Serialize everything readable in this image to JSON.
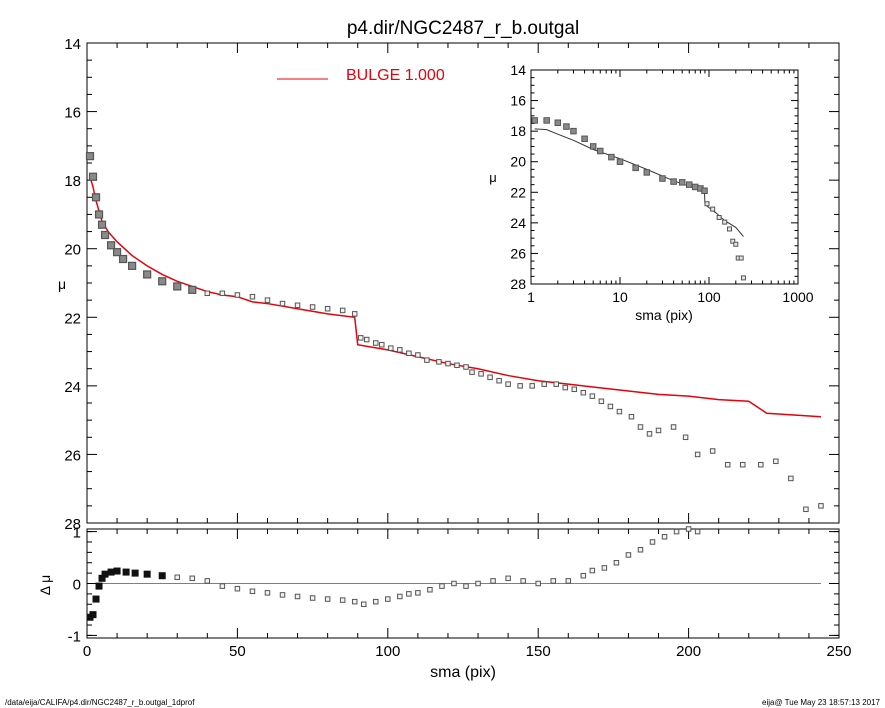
{
  "title": "p4.dir/NGC2487_r_b.outgal",
  "footer": {
    "path": "/data/eija/CALIFA/p4.dir/NGC2487_r_b.outgal_1dprof",
    "stamp": "eija@  Tue May 23 18:57:13 2017"
  },
  "legend": {
    "label": "BULGE  1.000",
    "placement": "top-center"
  },
  "colors": {
    "model": "#e8000b",
    "data": "#555555",
    "axis": "#000000",
    "inset_model": "#333333"
  },
  "chart_data": [
    {
      "type": "scatter",
      "panel": "main",
      "xlabel": "sma (pix)",
      "ylabel": "μ",
      "xlim": [
        0,
        250
      ],
      "ylim": [
        28,
        14
      ],
      "y_inverted": true,
      "xticks": [
        "0",
        "50",
        "100",
        "150",
        "200",
        "250"
      ],
      "yticks": [
        "14",
        "16",
        "18",
        "20",
        "22",
        "24",
        "26",
        "28"
      ],
      "series": [
        {
          "name": "BULGE  1.000",
          "kind": "line",
          "points": [
            [
              1,
              17.9
            ],
            [
              2,
              18.2
            ],
            [
              3,
              18.6
            ],
            [
              4,
              18.9
            ],
            [
              5,
              19.2
            ],
            [
              7,
              19.5
            ],
            [
              10,
              19.8
            ],
            [
              15,
              20.2
            ],
            [
              20,
              20.5
            ],
            [
              25,
              20.75
            ],
            [
              30,
              20.95
            ],
            [
              35,
              21.1
            ],
            [
              40,
              21.25
            ],
            [
              45,
              21.35
            ],
            [
              50,
              21.4
            ],
            [
              55,
              21.55
            ],
            [
              60,
              21.6
            ],
            [
              70,
              21.75
            ],
            [
              80,
              21.9
            ],
            [
              89,
              22.0
            ],
            [
              90,
              22.8
            ],
            [
              100,
              22.95
            ],
            [
              110,
              23.15
            ],
            [
              120,
              23.35
            ],
            [
              130,
              23.5
            ],
            [
              140,
              23.7
            ],
            [
              150,
              23.85
            ],
            [
              160,
              23.95
            ],
            [
              170,
              24.05
            ],
            [
              180,
              24.15
            ],
            [
              190,
              24.25
            ],
            [
              200,
              24.3
            ],
            [
              210,
              24.4
            ],
            [
              220,
              24.45
            ],
            [
              226,
              24.8
            ],
            [
              235,
              24.85
            ],
            [
              244,
              24.9
            ]
          ]
        },
        {
          "kind": "markers",
          "points": [
            [
              1,
              17.3
            ],
            [
              2,
              17.9
            ],
            [
              3,
              18.5
            ],
            [
              4,
              19.0
            ],
            [
              5,
              19.3
            ],
            [
              6,
              19.6
            ],
            [
              8,
              19.9
            ],
            [
              10,
              20.1
            ],
            [
              12,
              20.3
            ],
            [
              15,
              20.5
            ],
            [
              20,
              20.75
            ],
            [
              25,
              20.95
            ],
            [
              30,
              21.1
            ],
            [
              35,
              21.2
            ],
            [
              40,
              21.3
            ],
            [
              45,
              21.3
            ],
            [
              50,
              21.35
            ],
            [
              55,
              21.4
            ],
            [
              60,
              21.5
            ],
            [
              65,
              21.6
            ],
            [
              70,
              21.65
            ],
            [
              75,
              21.7
            ],
            [
              80,
              21.75
            ],
            [
              85,
              21.8
            ],
            [
              89,
              21.9
            ],
            [
              91,
              22.6
            ],
            [
              93,
              22.65
            ],
            [
              96,
              22.75
            ],
            [
              98,
              22.8
            ],
            [
              101,
              22.9
            ],
            [
              104,
              22.95
            ],
            [
              107,
              23.05
            ],
            [
              110,
              23.1
            ],
            [
              113,
              23.25
            ],
            [
              117,
              23.3
            ],
            [
              120,
              23.35
            ],
            [
              123,
              23.4
            ],
            [
              126,
              23.45
            ],
            [
              128,
              23.6
            ],
            [
              131,
              23.65
            ],
            [
              134,
              23.75
            ],
            [
              137,
              23.85
            ],
            [
              140,
              23.95
            ],
            [
              144,
              24.0
            ],
            [
              148,
              24.0
            ],
            [
              152,
              23.95
            ],
            [
              156,
              23.95
            ],
            [
              159,
              24.05
            ],
            [
              162,
              24.1
            ],
            [
              165,
              24.2
            ],
            [
              168,
              24.3
            ],
            [
              171,
              24.45
            ],
            [
              174,
              24.6
            ],
            [
              177,
              24.75
            ],
            [
              181,
              24.9
            ],
            [
              184,
              25.2
            ],
            [
              187,
              25.4
            ],
            [
              190,
              25.3
            ],
            [
              195,
              25.2
            ],
            [
              199,
              25.5
            ],
            [
              203,
              26.0
            ],
            [
              208,
              25.9
            ],
            [
              213,
              26.3
            ],
            [
              218,
              26.3
            ],
            [
              224,
              26.3
            ],
            [
              229,
              26.2
            ],
            [
              234,
              26.7
            ],
            [
              239,
              27.6
            ],
            [
              244,
              27.5
            ]
          ]
        }
      ]
    },
    {
      "type": "scatter",
      "panel": "residual",
      "xlabel": "sma (pix)",
      "ylabel": "Δ μ",
      "xlim": [
        0,
        250
      ],
      "ylim": [
        -1.05,
        1.05
      ],
      "yticks": [
        "1",
        "0",
        "-1"
      ],
      "zero_line": true,
      "series": [
        {
          "kind": "markers",
          "points": [
            [
              1,
              -0.65
            ],
            [
              2,
              -0.6
            ],
            [
              3,
              -0.3
            ],
            [
              4,
              -0.05
            ],
            [
              5,
              0.1
            ],
            [
              6,
              0.18
            ],
            [
              8,
              0.22
            ],
            [
              10,
              0.24
            ],
            [
              13,
              0.22
            ],
            [
              16,
              0.2
            ],
            [
              20,
              0.18
            ],
            [
              25,
              0.15
            ],
            [
              30,
              0.12
            ],
            [
              35,
              0.1
            ],
            [
              40,
              0.05
            ],
            [
              45,
              -0.05
            ],
            [
              50,
              -0.1
            ],
            [
              55,
              -0.15
            ],
            [
              60,
              -0.18
            ],
            [
              65,
              -0.22
            ],
            [
              70,
              -0.25
            ],
            [
              75,
              -0.28
            ],
            [
              80,
              -0.3
            ],
            [
              85,
              -0.32
            ],
            [
              89,
              -0.35
            ],
            [
              92,
              -0.4
            ],
            [
              96,
              -0.35
            ],
            [
              100,
              -0.3
            ],
            [
              104,
              -0.25
            ],
            [
              107,
              -0.2
            ],
            [
              110,
              -0.18
            ],
            [
              114,
              -0.12
            ],
            [
              118,
              -0.05
            ],
            [
              122,
              0.0
            ],
            [
              126,
              -0.05
            ],
            [
              130,
              0.0
            ],
            [
              135,
              0.05
            ],
            [
              140,
              0.1
            ],
            [
              145,
              0.05
            ],
            [
              150,
              0.0
            ],
            [
              155,
              0.05
            ],
            [
              160,
              0.05
            ],
            [
              165,
              0.15
            ],
            [
              168,
              0.25
            ],
            [
              172,
              0.3
            ],
            [
              176,
              0.4
            ],
            [
              180,
              0.55
            ],
            [
              184,
              0.65
            ],
            [
              188,
              0.8
            ],
            [
              192,
              0.9
            ],
            [
              196,
              1.0
            ],
            [
              200,
              1.05
            ],
            [
              203,
              1.0
            ]
          ]
        }
      ]
    },
    {
      "type": "scatter",
      "panel": "inset",
      "xlabel": "sma (pix)",
      "ylabel": "μ",
      "x_log": true,
      "xlim": [
        1,
        1000
      ],
      "ylim": [
        28,
        14
      ],
      "y_inverted": true,
      "xticks": [
        "1",
        "10",
        "100",
        "1000"
      ],
      "yticks": [
        "14",
        "16",
        "18",
        "20",
        "22",
        "24",
        "26",
        "28"
      ],
      "series": [
        {
          "kind": "line",
          "points": [
            [
              1.1,
              17.85
            ],
            [
              1.5,
              17.9
            ],
            [
              2,
              18.2
            ],
            [
              3,
              18.6
            ],
            [
              5,
              19.2
            ],
            [
              10,
              19.8
            ],
            [
              20,
              20.5
            ],
            [
              40,
              21.25
            ],
            [
              60,
              21.6
            ],
            [
              89,
              22.0
            ],
            [
              90,
              22.8
            ],
            [
              120,
              23.35
            ],
            [
              150,
              23.85
            ],
            [
              200,
              24.3
            ],
            [
              244,
              24.9
            ]
          ]
        },
        {
          "kind": "markers",
          "points": [
            [
              1.1,
              17.3
            ],
            [
              1.5,
              17.3
            ],
            [
              2,
              17.45
            ],
            [
              2.5,
              17.7
            ],
            [
              3,
              18.0
            ],
            [
              4,
              18.5
            ],
            [
              5,
              19.0
            ],
            [
              6,
              19.3
            ],
            [
              8,
              19.7
            ],
            [
              10,
              20.0
            ],
            [
              15,
              20.4
            ],
            [
              20,
              20.7
            ],
            [
              30,
              21.1
            ],
            [
              40,
              21.3
            ],
            [
              50,
              21.35
            ],
            [
              60,
              21.5
            ],
            [
              70,
              21.65
            ],
            [
              80,
              21.75
            ],
            [
              89,
              21.9
            ],
            [
              95,
              22.75
            ],
            [
              110,
              23.1
            ],
            [
              130,
              23.65
            ],
            [
              150,
              23.95
            ],
            [
              170,
              24.4
            ],
            [
              185,
              25.2
            ],
            [
              200,
              25.4
            ],
            [
              213,
              26.3
            ],
            [
              230,
              26.3
            ],
            [
              244,
              27.6
            ]
          ]
        }
      ]
    }
  ]
}
